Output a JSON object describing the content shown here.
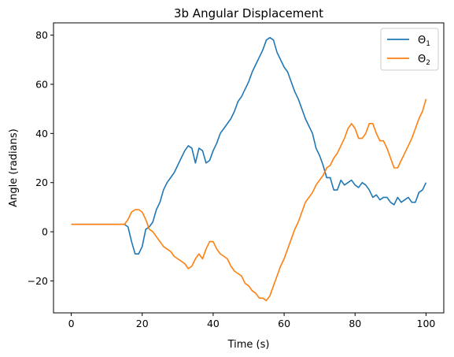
{
  "chart_data": {
    "type": "line",
    "title": "3b Angular Displacement",
    "xlabel": "Time (s)",
    "ylabel": "Angle (radians)",
    "xlim": [
      -5,
      105
    ],
    "ylim": [
      -33,
      85
    ],
    "xticks": [
      0,
      20,
      40,
      60,
      80,
      100
    ],
    "xtick_labels": [
      "0",
      "20",
      "40",
      "60",
      "80",
      "100"
    ],
    "yticks": [
      -20,
      0,
      20,
      40,
      60,
      80
    ],
    "ytick_labels": [
      "−20",
      "0",
      "20",
      "40",
      "60",
      "80"
    ],
    "grid": false,
    "legend_placement": "top-right",
    "series": [
      {
        "name": "Θ1",
        "legend_base": "Θ",
        "legend_sub": "1",
        "color": "#1f77b4",
        "points": [
          [
            0,
            3
          ],
          [
            15,
            3
          ],
          [
            16,
            2
          ],
          [
            17,
            -4
          ],
          [
            18,
            -9
          ],
          [
            19,
            -9
          ],
          [
            20,
            -6
          ],
          [
            21,
            1
          ],
          [
            22,
            2
          ],
          [
            23,
            4
          ],
          [
            24,
            9
          ],
          [
            25,
            12
          ],
          [
            26,
            17
          ],
          [
            27,
            20
          ],
          [
            28,
            22
          ],
          [
            29,
            24
          ],
          [
            30,
            27
          ],
          [
            31,
            30
          ],
          [
            32,
            33
          ],
          [
            33,
            35
          ],
          [
            34,
            34
          ],
          [
            35,
            28
          ],
          [
            36,
            34
          ],
          [
            37,
            33
          ],
          [
            38,
            28
          ],
          [
            39,
            29
          ],
          [
            40,
            33
          ],
          [
            41,
            36
          ],
          [
            42,
            40
          ],
          [
            43,
            42
          ],
          [
            44,
            44
          ],
          [
            45,
            46
          ],
          [
            46,
            49
          ],
          [
            47,
            53
          ],
          [
            48,
            55
          ],
          [
            49,
            58
          ],
          [
            50,
            61
          ],
          [
            51,
            65
          ],
          [
            52,
            68
          ],
          [
            53,
            71
          ],
          [
            54,
            74
          ],
          [
            55,
            78
          ],
          [
            56,
            79
          ],
          [
            57,
            78
          ],
          [
            58,
            73
          ],
          [
            59,
            70
          ],
          [
            60,
            67
          ],
          [
            61,
            65
          ],
          [
            62,
            61
          ],
          [
            63,
            57
          ],
          [
            64,
            54
          ],
          [
            65,
            50
          ],
          [
            66,
            46
          ],
          [
            67,
            43
          ],
          [
            68,
            40
          ],
          [
            69,
            34
          ],
          [
            70,
            31
          ],
          [
            71,
            27
          ],
          [
            72,
            22
          ],
          [
            73,
            22
          ],
          [
            74,
            17
          ],
          [
            75,
            17
          ],
          [
            76,
            21
          ],
          [
            77,
            19
          ],
          [
            78,
            20
          ],
          [
            79,
            21
          ],
          [
            80,
            19
          ],
          [
            81,
            18
          ],
          [
            82,
            20
          ],
          [
            83,
            19
          ],
          [
            84,
            17
          ],
          [
            85,
            14
          ],
          [
            86,
            15
          ],
          [
            87,
            13
          ],
          [
            88,
            14
          ],
          [
            89,
            14
          ],
          [
            90,
            12
          ],
          [
            91,
            11
          ],
          [
            92,
            14
          ],
          [
            93,
            12
          ],
          [
            94,
            13
          ],
          [
            95,
            14
          ],
          [
            96,
            12
          ],
          [
            97,
            12
          ],
          [
            98,
            16
          ],
          [
            99,
            17
          ],
          [
            100,
            20
          ]
        ]
      },
      {
        "name": "Θ2",
        "legend_base": "Θ",
        "legend_sub": "2",
        "color": "#ff7f0e",
        "points": [
          [
            0,
            3
          ],
          [
            15,
            3
          ],
          [
            16,
            5
          ],
          [
            17,
            8
          ],
          [
            18,
            9
          ],
          [
            19,
            9
          ],
          [
            20,
            8
          ],
          [
            21,
            5
          ],
          [
            22,
            1
          ],
          [
            23,
            0
          ],
          [
            24,
            -2
          ],
          [
            25,
            -4
          ],
          [
            26,
            -6
          ],
          [
            27,
            -7
          ],
          [
            28,
            -8
          ],
          [
            29,
            -10
          ],
          [
            30,
            -11
          ],
          [
            31,
            -12
          ],
          [
            32,
            -13
          ],
          [
            33,
            -15
          ],
          [
            34,
            -14
          ],
          [
            35,
            -11
          ],
          [
            36,
            -9
          ],
          [
            37,
            -11
          ],
          [
            38,
            -7
          ],
          [
            39,
            -4
          ],
          [
            40,
            -4
          ],
          [
            41,
            -7
          ],
          [
            42,
            -9
          ],
          [
            43,
            -10
          ],
          [
            44,
            -11
          ],
          [
            45,
            -14
          ],
          [
            46,
            -16
          ],
          [
            47,
            -17
          ],
          [
            48,
            -18
          ],
          [
            49,
            -21
          ],
          [
            50,
            -22
          ],
          [
            51,
            -24
          ],
          [
            52,
            -25
          ],
          [
            53,
            -27
          ],
          [
            54,
            -27
          ],
          [
            55,
            -28
          ],
          [
            56,
            -26
          ],
          [
            57,
            -22
          ],
          [
            58,
            -18
          ],
          [
            59,
            -14
          ],
          [
            60,
            -11
          ],
          [
            61,
            -7
          ],
          [
            62,
            -3
          ],
          [
            63,
            1
          ],
          [
            64,
            4
          ],
          [
            65,
            8
          ],
          [
            66,
            12
          ],
          [
            67,
            14
          ],
          [
            68,
            16
          ],
          [
            69,
            19
          ],
          [
            70,
            21
          ],
          [
            71,
            23
          ],
          [
            72,
            26
          ],
          [
            73,
            27
          ],
          [
            74,
            30
          ],
          [
            75,
            32
          ],
          [
            76,
            35
          ],
          [
            77,
            38
          ],
          [
            78,
            42
          ],
          [
            79,
            44
          ],
          [
            80,
            42
          ],
          [
            81,
            38
          ],
          [
            82,
            38
          ],
          [
            83,
            40
          ],
          [
            84,
            44
          ],
          [
            85,
            44
          ],
          [
            86,
            40
          ],
          [
            87,
            37
          ],
          [
            88,
            37
          ],
          [
            89,
            34
          ],
          [
            90,
            30
          ],
          [
            91,
            26
          ],
          [
            92,
            26
          ],
          [
            93,
            29
          ],
          [
            94,
            32
          ],
          [
            95,
            35
          ],
          [
            96,
            38
          ],
          [
            97,
            42
          ],
          [
            98,
            46
          ],
          [
            99,
            49
          ],
          [
            100,
            54
          ]
        ]
      }
    ]
  }
}
